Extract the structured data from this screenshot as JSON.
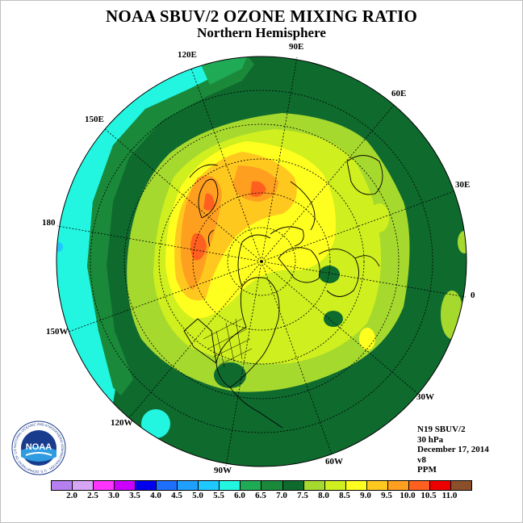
{
  "title": "NOAA SBUV/2 OZONE MIXING RATIO",
  "subtitle": "Northern Hemisphere",
  "longitude_labels": [
    {
      "text": "90E"
    },
    {
      "text": "60E"
    },
    {
      "text": "30E"
    },
    {
      "text": "0"
    },
    {
      "text": "30W"
    },
    {
      "text": "60W"
    },
    {
      "text": "90W"
    },
    {
      "text": "120W"
    },
    {
      "text": "150W"
    },
    {
      "text": "180"
    },
    {
      "text": "150E"
    },
    {
      "text": "120E"
    }
  ],
  "info": {
    "satellite": "N19 SBUV/2",
    "level": "30 hPa",
    "date": "December 17, 2014",
    "version": "v8",
    "units": "PPM"
  },
  "logo": {
    "text": "NOAA",
    "ring_text": "NATIONAL OCEANIC AND ATMOSPHERIC ADMINISTRATION · U.S. DEPARTMENT OF COMMERCE"
  },
  "colorbar": {
    "colors": [
      "#b57ff0",
      "#d6a6f5",
      "#ff33ff",
      "#cc00ff",
      "#0000ee",
      "#1f6fff",
      "#1fa0ff",
      "#1fc8ff",
      "#22f5e0",
      "#1faa55",
      "#1a8a3a",
      "#0f6a2e",
      "#a6d92e",
      "#cfef1f",
      "#ffff1f",
      "#ffc81f",
      "#ff9f1f",
      "#ff5f1f",
      "#ee0000",
      "#8b4f2a"
    ],
    "ticks": [
      "2.0",
      "2.5",
      "3.0",
      "3.5",
      "4.0",
      "4.5",
      "5.0",
      "5.5",
      "6.0",
      "6.5",
      "7.0",
      "7.5",
      "8.0",
      "8.5",
      "9.0",
      "9.5",
      "10.0",
      "10.5",
      "11.0"
    ]
  }
}
